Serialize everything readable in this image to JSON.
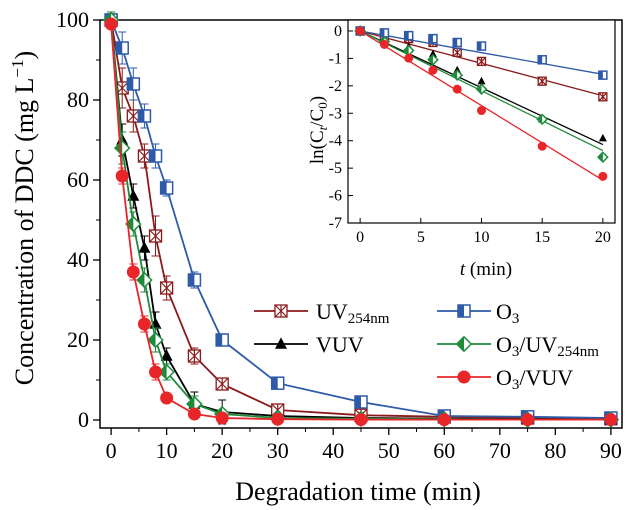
{
  "chart_data": [
    {
      "type": "line",
      "xlabel": "Degradation time (min)",
      "ylabel": "Concentration of DDC (mg L−1)",
      "ylabel_main": "Concentration of DDC (mg L",
      "ylabel_sup": "−1",
      "ylabel_close": ")",
      "xlim": [
        -2,
        92
      ],
      "ylim": [
        -2,
        100
      ],
      "x_ticks": [
        0,
        10,
        20,
        30,
        40,
        50,
        60,
        70,
        80,
        90
      ],
      "y_ticks": [
        0,
        20,
        40,
        60,
        80,
        100
      ],
      "x": [
        0,
        2,
        4,
        6,
        8,
        10,
        15,
        20,
        30,
        45,
        60,
        75,
        90
      ],
      "legend_position": "center-right",
      "series": [
        {
          "name": "UV254nm",
          "name_main": "UV",
          "name_sub": "254nm",
          "color": "#8b1a1a",
          "marker": "star-square",
          "values": [
            100,
            83,
            76,
            66,
            46,
            33,
            16,
            9,
            2.5,
            1.2,
            0.8,
            0.5,
            0.3
          ],
          "errors": [
            2,
            5,
            4,
            3,
            5,
            3,
            2,
            1,
            1,
            0,
            0,
            0,
            0
          ]
        },
        {
          "name": "O3",
          "name_main": "O",
          "name_sub": "3",
          "color": "#2e5aa8",
          "marker": "half-square",
          "values": [
            100,
            93,
            84,
            76,
            66,
            58,
            35,
            20,
            9.2,
            4.5,
            1,
            0.8,
            0.5
          ],
          "errors": [
            2,
            4,
            4,
            3,
            3,
            2,
            2,
            1,
            1,
            1,
            0,
            0,
            0
          ]
        },
        {
          "name": "VUV",
          "name_main": "VUV",
          "name_sub": "",
          "color": "#000000",
          "marker": "triangle",
          "values": [
            100,
            70,
            56,
            43,
            24,
            16,
            4,
            2,
            1,
            0.5,
            0.3,
            0.2,
            0.1
          ],
          "errors": [
            2,
            4,
            3,
            3,
            3,
            2,
            3,
            3,
            0,
            0,
            0,
            0,
            0
          ]
        },
        {
          "name": "O3/UV254nm",
          "name_main": "O",
          "name_sub": "3",
          "name_rest": "/UV",
          "name_sub2": "254nm",
          "color": "#1e8b3a",
          "marker": "half-diamond",
          "values": [
            100,
            68,
            49,
            35,
            20,
            12,
            4,
            1.5,
            0.5,
            0.3,
            0.2,
            0.1,
            0.1
          ],
          "errors": [
            2,
            4,
            3,
            3,
            3,
            2,
            2,
            1,
            0,
            0,
            0,
            0,
            0
          ]
        },
        {
          "name": "O3/VUV",
          "name_main": "O",
          "name_sub": "3",
          "name_rest": "/VUV",
          "color": "#e8262a",
          "marker": "circle",
          "values": [
            99,
            61,
            37,
            24,
            12,
            5.5,
            1.5,
            0.5,
            0.2,
            0.1,
            0.1,
            0.1,
            0.1
          ],
          "errors": [
            1,
            2,
            2,
            2,
            2,
            1,
            1,
            0,
            0,
            0,
            0,
            0,
            0
          ]
        }
      ]
    },
    {
      "type": "scatter",
      "role": "inset",
      "ylabel_main": "ln(C",
      "ylabel_sub1": "t",
      "ylabel_mid": "/C",
      "ylabel_sub2": "0",
      "ylabel_close": ")",
      "xlabel_var": "t",
      "xlabel_unit": " (min)",
      "xlim": [
        -1,
        21
      ],
      "ylim": [
        -7,
        0.4
      ],
      "x_ticks": [
        0,
        5,
        10,
        15,
        20
      ],
      "y_ticks": [
        0,
        -1,
        -2,
        -3,
        -4,
        -5,
        -6,
        -7
      ],
      "x": [
        0,
        2,
        4,
        6,
        8,
        10,
        15,
        20
      ],
      "series": [
        {
          "name": "UV254nm",
          "color": "#8b1a1a",
          "marker": "star-square",
          "slope": -0.118,
          "values": [
            0,
            -0.19,
            -0.28,
            -0.42,
            -0.78,
            -1.11,
            -1.83,
            -2.4
          ]
        },
        {
          "name": "O3",
          "color": "#2e5aa8",
          "marker": "half-square",
          "slope": -0.079,
          "values": [
            0,
            -0.07,
            -0.17,
            -0.28,
            -0.42,
            -0.55,
            -1.05,
            -1.61
          ]
        },
        {
          "name": "VUV",
          "color": "#000000",
          "marker": "triangle",
          "slope": -0.207,
          "values": [
            0,
            -0.35,
            -0.58,
            -0.84,
            -1.43,
            -1.83,
            -3.22,
            -3.91
          ]
        },
        {
          "name": "O3/UV254nm",
          "color": "#1e8b3a",
          "marker": "half-diamond",
          "slope": -0.218,
          "values": [
            0,
            -0.39,
            -0.71,
            -1.05,
            -1.61,
            -2.12,
            -3.22,
            -4.6
          ]
        },
        {
          "name": "O3/VUV",
          "color": "#e8262a",
          "marker": "circle",
          "slope": -0.272,
          "values": [
            0,
            -0.49,
            -0.99,
            -1.43,
            -2.12,
            -2.9,
            -4.2,
            -5.3
          ]
        }
      ]
    }
  ]
}
